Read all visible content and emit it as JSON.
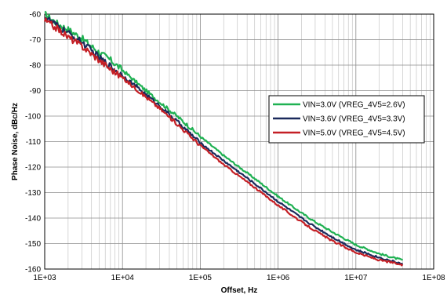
{
  "chart_data": {
    "type": "line",
    "xlabel": "Offset, Hz",
    "ylabel": "Phase Noise, dBc/Hz",
    "x_scale": "log",
    "xlim": [
      1000,
      100000000
    ],
    "ylim": [
      -160,
      -60
    ],
    "grid": true,
    "minor_grid_x": true,
    "legend_position": "center-right",
    "x_ticks": [
      {
        "value": 1000,
        "label": "1E+03"
      },
      {
        "value": 10000,
        "label": "1E+04"
      },
      {
        "value": 100000,
        "label": "1E+05"
      },
      {
        "value": 1000000,
        "label": "1E+06"
      },
      {
        "value": 10000000,
        "label": "1E+07"
      },
      {
        "value": 100000000,
        "label": "1E+08"
      }
    ],
    "y_ticks": [
      {
        "value": -60,
        "label": "-60"
      },
      {
        "value": -70,
        "label": "-70"
      },
      {
        "value": -80,
        "label": "-80"
      },
      {
        "value": -90,
        "label": "-90"
      },
      {
        "value": -100,
        "label": "-100"
      },
      {
        "value": -110,
        "label": "-110"
      },
      {
        "value": -120,
        "label": "-120"
      },
      {
        "value": -130,
        "label": "-130"
      },
      {
        "value": -140,
        "label": "-140"
      },
      {
        "value": -150,
        "label": "-150"
      },
      {
        "value": -160,
        "label": "-160"
      }
    ],
    "series": [
      {
        "name": "VIN=3.0V (VREG_4V5=2.6V)",
        "color": "#1fb152",
        "x": [
          1000,
          1500,
          2000,
          3000,
          5000,
          7000,
          10000,
          20000,
          30000,
          50000,
          100000,
          200000,
          300000,
          500000,
          1000000,
          2000000,
          3000000,
          5000000,
          10000000,
          20000000,
          30000000,
          40000000
        ],
        "y": [
          -60,
          -64,
          -66,
          -69.5,
          -75,
          -78,
          -82,
          -90,
          -94.5,
          -100,
          -108,
          -115.5,
          -119.5,
          -124.5,
          -131.5,
          -138,
          -141.5,
          -145.5,
          -150.5,
          -154,
          -155.5,
          -156.5
        ]
      },
      {
        "name": "VIN=3.6V (VREG_4V5=3.3V)",
        "color": "#1b2a5c",
        "x": [
          1000,
          1500,
          2000,
          3000,
          5000,
          7000,
          10000,
          20000,
          30000,
          50000,
          100000,
          200000,
          300000,
          500000,
          1000000,
          2000000,
          3000000,
          5000000,
          10000000,
          20000000,
          30000000,
          40000000
        ],
        "y": [
          -61,
          -65,
          -67.5,
          -71,
          -77,
          -80.5,
          -84,
          -91.5,
          -96,
          -102,
          -110.5,
          -117.5,
          -121.5,
          -126.5,
          -133.5,
          -140,
          -143.5,
          -147.5,
          -152.5,
          -155.5,
          -157,
          -158
        ]
      },
      {
        "name": "VIN=5.0V (VREG_4V5=4.5V)",
        "color": "#c41f25",
        "x": [
          1000,
          1500,
          2000,
          3000,
          5000,
          7000,
          10000,
          20000,
          30000,
          50000,
          100000,
          200000,
          300000,
          500000,
          1000000,
          2000000,
          3000000,
          5000000,
          10000000,
          20000000,
          30000000,
          40000000
        ],
        "y": [
          -62.5,
          -66,
          -69,
          -72.5,
          -78,
          -81.5,
          -85,
          -92.5,
          -97,
          -103,
          -111.5,
          -119,
          -123,
          -128,
          -135,
          -141.5,
          -145,
          -149,
          -153.5,
          -156.5,
          -157.5,
          -158.5
        ]
      }
    ]
  }
}
